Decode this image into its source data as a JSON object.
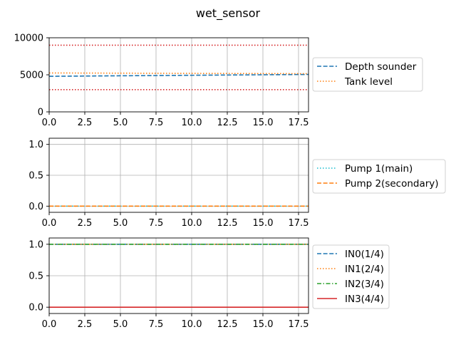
{
  "figure": {
    "title": "wet_sensor"
  },
  "chart_data": [
    {
      "type": "line",
      "title": "",
      "xlabel": "",
      "ylabel": "",
      "xlim": [
        0,
        18.2
      ],
      "ylim": [
        0,
        10000
      ],
      "xticks": [
        0,
        2.5,
        5,
        7.5,
        10,
        12.5,
        15,
        17.5
      ],
      "xtick_labels": [
        "0.0",
        "2.5",
        "5.0",
        "7.5",
        "10.0",
        "12.5",
        "15.0",
        "17.5"
      ],
      "yticks": [
        0,
        5000,
        10000
      ],
      "ytick_labels": [
        "0",
        "5000",
        "10000"
      ],
      "grid": "x",
      "legend_position": "right",
      "series": [
        {
          "name": "Depth sounder",
          "color": "#1f77b4",
          "style": "dashed",
          "x": [
            0,
            18.2
          ],
          "y": [
            4800,
            5050
          ]
        },
        {
          "name": "Tank level",
          "color": "#ff7f0e",
          "style": "dotted",
          "x": [
            0,
            18.2
          ],
          "y": [
            5250,
            5150
          ]
        }
      ],
      "reference_lines": [
        {
          "y": 9000,
          "color": "#d62728",
          "style": "dotted"
        },
        {
          "y": 3000,
          "color": "#d62728",
          "style": "dotted"
        }
      ]
    },
    {
      "type": "line",
      "title": "",
      "xlabel": "",
      "ylabel": "",
      "xlim": [
        0,
        18.2
      ],
      "ylim": [
        -0.1,
        1.1
      ],
      "xticks": [
        0,
        2.5,
        5,
        7.5,
        10,
        12.5,
        15,
        17.5
      ],
      "xtick_labels": [
        "0.0",
        "2.5",
        "5.0",
        "7.5",
        "10.0",
        "12.5",
        "15.0",
        "17.5"
      ],
      "yticks": [
        0,
        0.5,
        1
      ],
      "ytick_labels": [
        "0.0",
        "0.5",
        "1.0"
      ],
      "grid": "both",
      "legend_position": "right",
      "series": [
        {
          "name": "Pump 1(main)",
          "color": "#17becf",
          "style": "dotted",
          "x": [
            0,
            18.2
          ],
          "y": [
            0,
            0
          ]
        },
        {
          "name": "Pump 2(secondary)",
          "color": "#ff7f0e",
          "style": "dashed",
          "x": [
            0,
            18.2
          ],
          "y": [
            0,
            0
          ]
        }
      ]
    },
    {
      "type": "line",
      "title": "",
      "xlabel": "",
      "ylabel": "",
      "xlim": [
        0,
        18.2
      ],
      "ylim": [
        -0.1,
        1.1
      ],
      "xticks": [
        0,
        2.5,
        5,
        7.5,
        10,
        12.5,
        15,
        17.5
      ],
      "xtick_labels": [
        "0.0",
        "2.5",
        "5.0",
        "7.5",
        "10.0",
        "12.5",
        "15.0",
        "17.5"
      ],
      "yticks": [
        0,
        0.5,
        1
      ],
      "ytick_labels": [
        "0.0",
        "0.5",
        "1.0"
      ],
      "grid": "both",
      "legend_position": "right",
      "series": [
        {
          "name": "IN0(1/4)",
          "color": "#1f77b4",
          "style": "dashed",
          "x": [
            0,
            18.2
          ],
          "y": [
            1,
            1
          ]
        },
        {
          "name": "IN1(2/4)",
          "color": "#ff7f0e",
          "style": "dotted",
          "x": [
            0,
            18.2
          ],
          "y": [
            1,
            1
          ]
        },
        {
          "name": "IN2(3/4)",
          "color": "#2ca02c",
          "style": "dashdot",
          "x": [
            0,
            18.2
          ],
          "y": [
            1,
            1
          ]
        },
        {
          "name": "IN3(4/4)",
          "color": "#d62728",
          "style": "solid",
          "x": [
            0,
            18.2
          ],
          "y": [
            0,
            0
          ]
        }
      ]
    }
  ]
}
